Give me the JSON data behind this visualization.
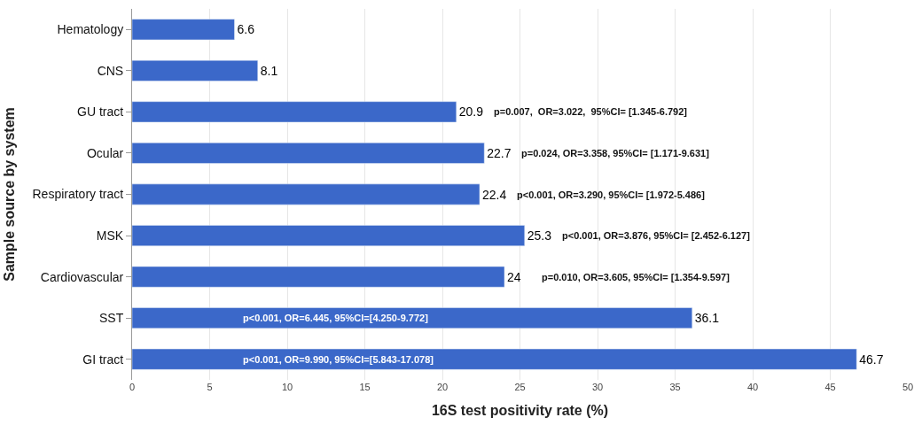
{
  "chart_data": {
    "type": "bar",
    "orientation": "horizontal",
    "xlabel": "16S test positivity rate (%)",
    "ylabel": "Sample source by system",
    "categories": [
      "Hematology",
      "CNS",
      "GU tract",
      "Ocular",
      "Respiratory tract",
      "MSK",
      "Cardiovascular",
      "SST",
      "GI tract"
    ],
    "values": [
      6.6,
      8.1,
      20.9,
      22.7,
      22.4,
      25.3,
      24,
      36.1,
      46.7
    ],
    "color": "#3b68c9",
    "data_labels": true,
    "xlim": [
      0,
      50
    ],
    "xticks": [
      0,
      5,
      10,
      15,
      20,
      25,
      30,
      35,
      40,
      45,
      50
    ],
    "grid": "x",
    "annotations": [
      "p=0.007,  OR=3.022,  95%CI= [1.345-6.792]",
      "p=0.024, OR=3.358, 95%CI= [1.171-9.631]",
      "p<0.001, OR=3.290, 95%CI= [1.972-5.486]",
      "p<0.001, OR=3.876, 95%CI= [2.452-6.127]",
      "p=0.010, OR=3.605, 95%CI= [1.354-9.597]",
      "p<0.001, OR=6.445, 95%CI=[4.250-9.772]",
      "p<0.001, OR=9.990, 95%CI=[5.843-17.078]"
    ]
  }
}
